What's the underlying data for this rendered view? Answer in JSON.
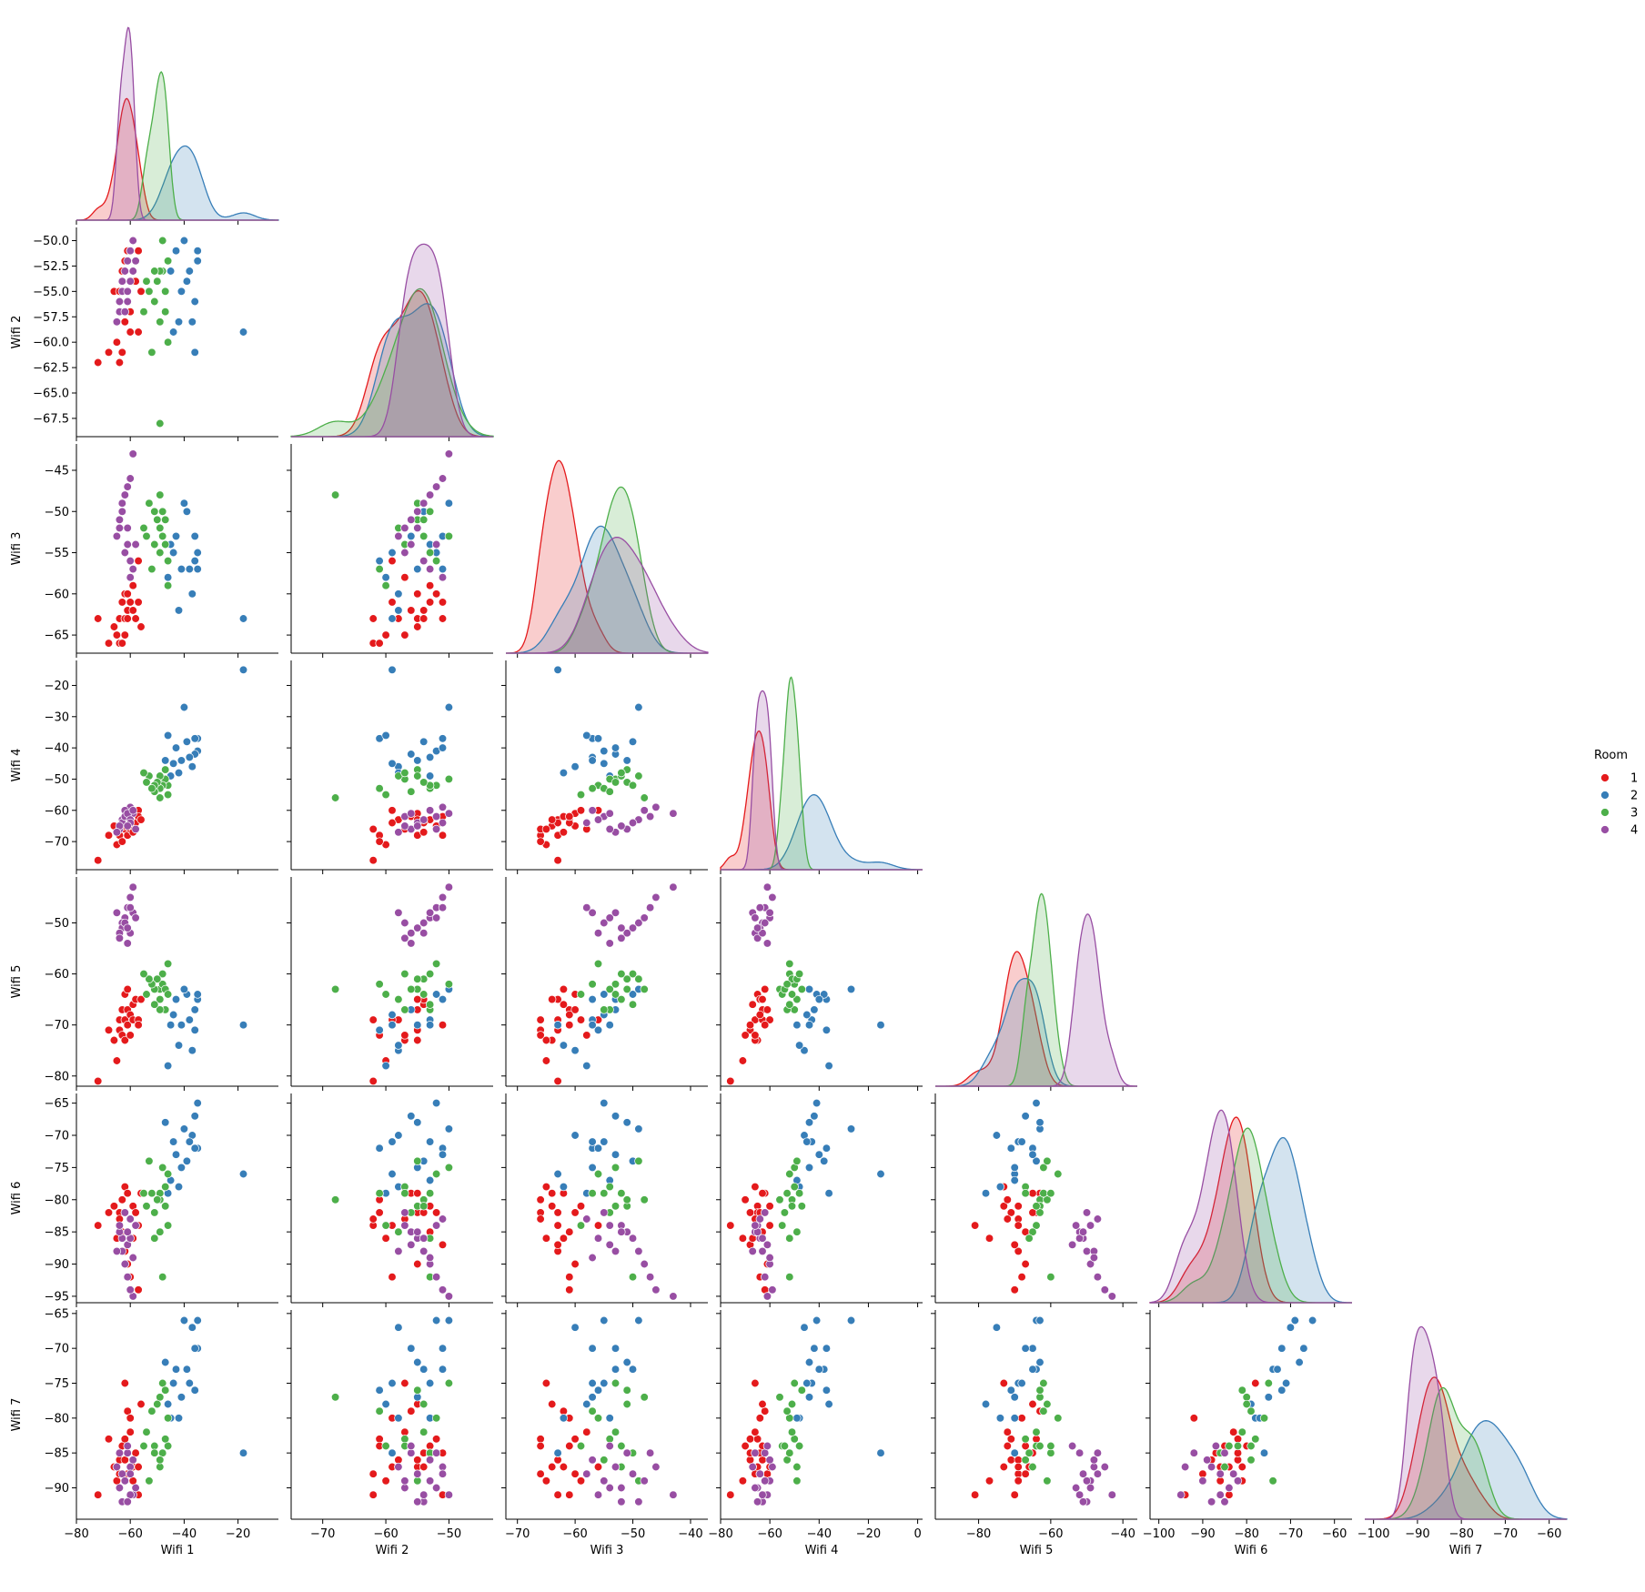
{
  "chart_data": {
    "type": "scatter",
    "kind": "pairplot-corner",
    "variables": [
      "Wifi 1",
      "Wifi 2",
      "Wifi 3",
      "Wifi 4",
      "Wifi 5",
      "Wifi 6",
      "Wifi 7"
    ],
    "diagonal": "kde",
    "legend": {
      "title": "Room",
      "placement": "right",
      "entries": [
        "1",
        "2",
        "3",
        "4"
      ]
    },
    "colors": {
      "1": "#e41a1c",
      "2": "#377eb8",
      "3": "#4daf4a",
      "4": "#984ea3"
    },
    "axes": {
      "Wifi 1": {
        "range": [
          -80,
          -5
        ],
        "ticks": [
          -80,
          -60,
          -40,
          -20
        ],
        "tick_labels": [
          "−80",
          "−60",
          "−40",
          "−20"
        ]
      },
      "Wifi 2": {
        "range": [
          -75,
          -43
        ],
        "ticks": [
          -70,
          -60,
          -50
        ],
        "tick_labels": [
          "−70",
          "−60",
          "−50"
        ],
        "y_ticks": [
          -50,
          -52.5,
          -55,
          -57.5,
          -60,
          -62.5,
          -65,
          -67.5
        ],
        "y_tick_labels": [
          "−50.0",
          "−52.5",
          "−55.0",
          "−57.5",
          "−60.0",
          "−62.5",
          "−65.0",
          "−67.5"
        ],
        "y_range": [
          -69.3,
          -48.7
        ]
      },
      "Wifi 3": {
        "range": [
          -72,
          -37
        ],
        "ticks": [
          -70,
          -60,
          -50,
          -40
        ],
        "tick_labels": [
          "−70",
          "−60",
          "−50",
          "−40"
        ],
        "y_ticks": [
          -45,
          -50,
          -55,
          -60,
          -65
        ],
        "y_tick_labels": [
          "−45",
          "−50",
          "−55",
          "−60",
          "−65"
        ],
        "y_range": [
          -67.2,
          -41.8
        ]
      },
      "Wifi 4": {
        "range": [
          -80,
          2
        ],
        "ticks": [
          -80,
          -60,
          -40,
          -20,
          0
        ],
        "tick_labels": [
          "−80",
          "−60",
          "−40",
          "−20",
          "0"
        ],
        "y_ticks": [
          -20,
          -30,
          -40,
          -50,
          -60,
          -70
        ],
        "y_tick_labels": [
          "−20",
          "−30",
          "−40",
          "−50",
          "−60",
          "−70"
        ],
        "y_range": [
          -79,
          -12
        ]
      },
      "Wifi 5": {
        "range": [
          -92,
          -36
        ],
        "ticks": [
          -80,
          -60,
          -40
        ],
        "tick_labels": [
          "−80",
          "−60",
          "−40"
        ],
        "y_ticks": [
          -50,
          -60,
          -70,
          -80
        ],
        "y_tick_labels": [
          "−50",
          "−60",
          "−70",
          "−80"
        ],
        "y_range": [
          -82,
          -41
        ]
      },
      "Wifi 6": {
        "range": [
          -102,
          -56
        ],
        "ticks": [
          -100,
          -90,
          -80,
          -70,
          -60
        ],
        "tick_labels": [
          "−100",
          "−90",
          "−80",
          "−70",
          "−60"
        ],
        "y_ticks": [
          -65,
          -70,
          -75,
          -80,
          -85,
          -90,
          -95
        ],
        "y_tick_labels": [
          "−65",
          "−70",
          "−75",
          "−80",
          "−85",
          "−90",
          "−95"
        ],
        "y_range": [
          -96,
          -63.5
        ]
      },
      "Wifi 7": {
        "range": [
          -102,
          -56
        ],
        "ticks": [
          -100,
          -90,
          -80,
          -70,
          -60
        ],
        "tick_labels": [
          "−100",
          "−90",
          "−80",
          "−70",
          "−60"
        ],
        "y_ticks": [
          -65,
          -70,
          -75,
          -80,
          -85,
          -90
        ],
        "y_tick_labels": [
          "−65",
          "−70",
          "−75",
          "−80",
          "−85",
          "−90"
        ],
        "y_range": [
          -94.5,
          -64.5
        ]
      }
    },
    "series": [
      {
        "name": "1",
        "points": [
          [
            -72,
            -62,
            -63,
            -76,
            -81,
            -84,
            -91
          ],
          [
            -68,
            -61,
            -66,
            -68,
            -71,
            -82,
            -83
          ],
          [
            -66,
            -55,
            -64,
            -65,
            -73,
            -81,
            -87
          ],
          [
            -65,
            -60,
            -65,
            -71,
            -77,
            -86,
            -89
          ],
          [
            -64,
            -55,
            -63,
            -68,
            -71,
            -82,
            -86
          ],
          [
            -64,
            -62,
            -66,
            -66,
            -69,
            -83,
            -88
          ],
          [
            -63,
            -61,
            -66,
            -70,
            -72,
            -80,
            -84
          ],
          [
            -63,
            -53,
            -61,
            -63,
            -67,
            -85,
            -84
          ],
          [
            -62,
            -57,
            -65,
            -66,
            -73,
            -78,
            -75
          ],
          [
            -62,
            -58,
            -63,
            -63,
            -69,
            -88,
            -86
          ],
          [
            -62,
            -52,
            -60,
            -65,
            -64,
            -82,
            -83
          ],
          [
            -61,
            -56,
            -62,
            -62,
            -63,
            -79,
            -79
          ],
          [
            -61,
            -51,
            -63,
            -68,
            -70,
            -87,
            -85
          ],
          [
            -61,
            -55,
            -60,
            -61,
            -67,
            -90,
            -88
          ],
          [
            -60,
            -59,
            -61,
            -64,
            -68,
            -92,
            -80
          ],
          [
            -60,
            -57,
            -58,
            -66,
            -72,
            -83,
            -82
          ],
          [
            -59,
            -53,
            -59,
            -60,
            -69,
            -81,
            -89
          ],
          [
            -59,
            -54,
            -62,
            -67,
            -66,
            -86,
            -87
          ],
          [
            -58,
            -54,
            -63,
            -64,
            -65,
            -82,
            -85
          ],
          [
            -57,
            -59,
            -56,
            -60,
            -69,
            -84,
            -87
          ],
          [
            -57,
            -51,
            -61,
            -62,
            -70,
            -94,
            -91
          ],
          [
            -56,
            -55,
            -64,
            -63,
            -65,
            -79,
            -78
          ]
        ]
      },
      {
        "name": "2",
        "points": [
          [
            -18,
            -59,
            -63,
            -15,
            -70,
            -76,
            -85
          ],
          [
            -35,
            -51,
            -57,
            -37,
            -65,
            -72,
            -70
          ],
          [
            -35,
            -52,
            -55,
            -41,
            -64,
            -65,
            -66
          ],
          [
            -36,
            -56,
            -53,
            -42,
            -67,
            -67,
            -70
          ],
          [
            -36,
            -61,
            -56,
            -37,
            -71,
            -72,
            -76
          ],
          [
            -37,
            -58,
            -60,
            -46,
            -75,
            -70,
            -67
          ],
          [
            -38,
            -53,
            -57,
            -43,
            -69,
            -71,
            -75
          ],
          [
            -39,
            -54,
            -50,
            -38,
            -64,
            -74,
            -73
          ],
          [
            -40,
            -50,
            -49,
            -27,
            -63,
            -69,
            -66
          ],
          [
            -41,
            -55,
            -57,
            -44,
            -70,
            -75,
            -77
          ],
          [
            -42,
            -58,
            -62,
            -48,
            -74,
            -78,
            -80
          ],
          [
            -43,
            -51,
            -53,
            -40,
            -65,
            -73,
            -73
          ],
          [
            -44,
            -59,
            -55,
            -45,
            -68,
            -71,
            -75
          ],
          [
            -45,
            -53,
            -54,
            -49,
            -70,
            -77,
            -80
          ],
          [
            -46,
            -60,
            -58,
            -36,
            -78,
            -79,
            -78
          ],
          [
            -47,
            -55,
            -51,
            -44,
            -63,
            -68,
            -72
          ]
        ]
      },
      {
        "name": "3",
        "points": [
          [
            -49,
            -68,
            -48,
            -56,
            -63,
            -80,
            -77
          ],
          [
            -48,
            -50,
            -53,
            -50,
            -62,
            -75,
            -75
          ],
          [
            -47,
            -55,
            -51,
            -47,
            -63,
            -81,
            -76
          ],
          [
            -46,
            -52,
            -56,
            -52,
            -58,
            -76,
            -80
          ],
          [
            -46,
            -60,
            -59,
            -55,
            -64,
            -84,
            -84
          ],
          [
            -47,
            -57,
            -54,
            -50,
            -67,
            -78,
            -83
          ],
          [
            -48,
            -53,
            -50,
            -52,
            -60,
            -92,
            -85
          ],
          [
            -49,
            -58,
            -52,
            -49,
            -65,
            -85,
            -87
          ],
          [
            -49,
            -53,
            -55,
            -53,
            -67,
            -79,
            -86
          ],
          [
            -50,
            -54,
            -51,
            -51,
            -61,
            -80,
            -78
          ],
          [
            -51,
            -56,
            -54,
            -54,
            -63,
            -82,
            -84
          ],
          [
            -51,
            -53,
            -50,
            -52,
            -66,
            -86,
            -85
          ],
          [
            -52,
            -61,
            -57,
            -53,
            -62,
            -79,
            -79
          ],
          [
            -53,
            -55,
            -49,
            -49,
            -61,
            -74,
            -89
          ],
          [
            -54,
            -54,
            -53,
            -51,
            -64,
            -81,
            -82
          ],
          [
            -55,
            -57,
            -52,
            -48,
            -60,
            -79,
            -84
          ]
        ]
      },
      {
        "name": "4",
        "points": [
          [
            -59,
            -50,
            -43,
            -61,
            -43,
            -95,
            -91
          ],
          [
            -60,
            -51,
            -46,
            -59,
            -45,
            -94,
            -87
          ],
          [
            -61,
            -52,
            -47,
            -62,
            -47,
            -92,
            -85
          ],
          [
            -62,
            -53,
            -48,
            -60,
            -49,
            -90,
            -89
          ],
          [
            -63,
            -54,
            -49,
            -63,
            -50,
            -88,
            -92
          ],
          [
            -63,
            -55,
            -50,
            -64,
            -51,
            -86,
            -88
          ],
          [
            -64,
            -56,
            -51,
            -66,
            -52,
            -85,
            -85
          ],
          [
            -64,
            -57,
            -52,
            -65,
            -53,
            -84,
            -90
          ],
          [
            -65,
            -58,
            -53,
            -67,
            -48,
            -88,
            -87
          ],
          [
            -62,
            -57,
            -55,
            -62,
            -50,
            -82,
            -89
          ],
          [
            -61,
            -56,
            -54,
            -61,
            -54,
            -87,
            -84
          ],
          [
            -60,
            -54,
            -56,
            -63,
            -52,
            -86,
            -91
          ],
          [
            -59,
            -53,
            -57,
            -60,
            -48,
            -89,
            -86
          ],
          [
            -60,
            -51,
            -58,
            -64,
            -47,
            -83,
            -88
          ],
          [
            -61,
            -55,
            -52,
            -65,
            -51,
            -85,
            -92
          ],
          [
            -58,
            -52,
            -54,
            -66,
            -49,
            -84,
            -90
          ]
        ]
      }
    ]
  }
}
